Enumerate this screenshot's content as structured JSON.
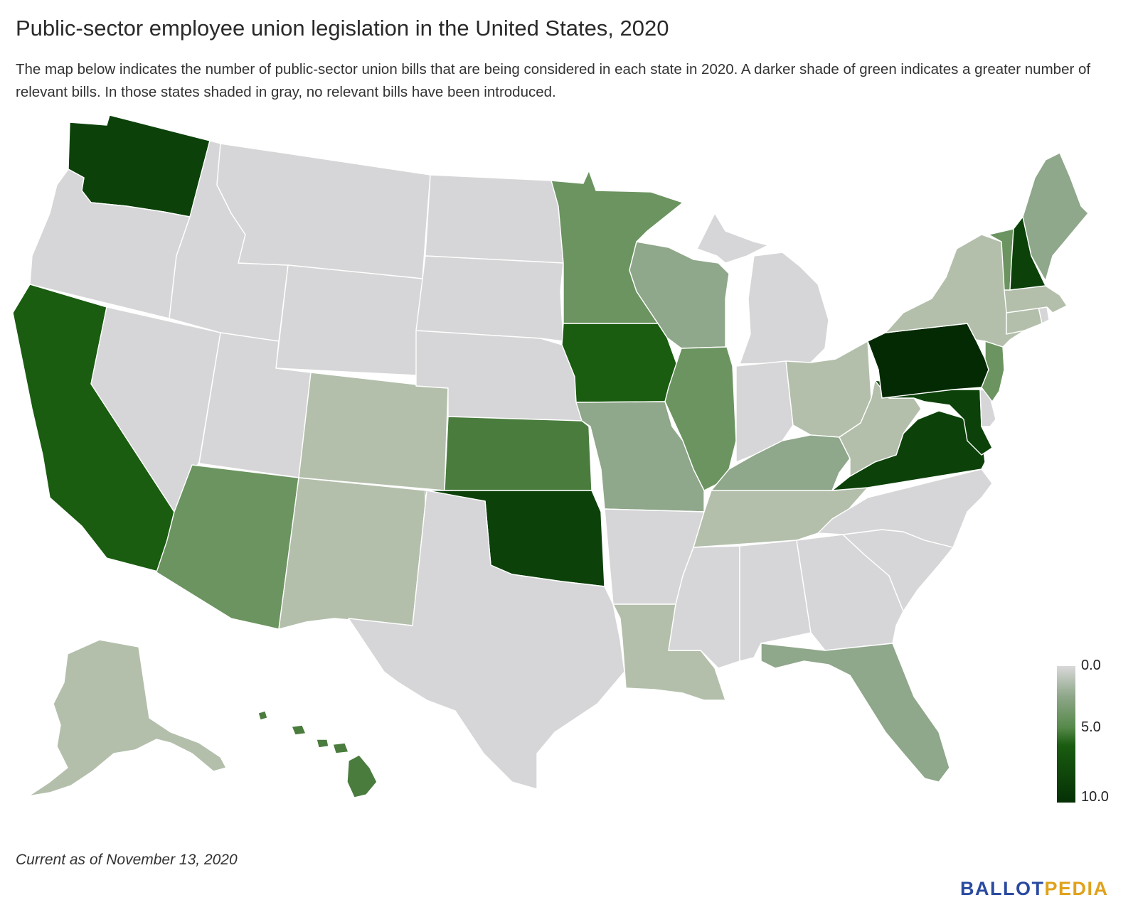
{
  "header": {
    "title": "Public-sector employee union legislation in the United States, 2020",
    "subtitle": "The map below indicates the number of public-sector union bills that are being considered in each state in 2020. A darker shade of green indicates a greater number of relevant bills. In those states shaded in gray, no relevant bills have been introduced."
  },
  "legend": {
    "min_label": "0.0",
    "mid_label": "5.0",
    "max_label": "10.0"
  },
  "footer": {
    "note": "Current as of November 13, 2020",
    "brand_part1": "BALLOT",
    "brand_part2": "PEDIA"
  },
  "colors": {
    "none": "#d6d6d8",
    "lightest": "#b3bfab",
    "light": "#8fa78a",
    "mid": "#6b9460",
    "midDark": "#4a7c3e",
    "dark": "#1a5c10",
    "darker": "#0c420a",
    "darkest": "#032a02",
    "brand_blue": "#2a4aa0",
    "brand_gold": "#e0a21c"
  },
  "states": [
    {
      "name": "Washington",
      "level": "darker"
    },
    {
      "name": "Oregon",
      "level": "none"
    },
    {
      "name": "California",
      "level": "dark"
    },
    {
      "name": "Nevada",
      "level": "none"
    },
    {
      "name": "Idaho",
      "level": "none"
    },
    {
      "name": "Montana",
      "level": "none"
    },
    {
      "name": "Wyoming",
      "level": "none"
    },
    {
      "name": "Utah",
      "level": "none"
    },
    {
      "name": "Arizona",
      "level": "mid"
    },
    {
      "name": "Colorado",
      "level": "lightest"
    },
    {
      "name": "New Mexico",
      "level": "lightest"
    },
    {
      "name": "North Dakota",
      "level": "none"
    },
    {
      "name": "South Dakota",
      "level": "none"
    },
    {
      "name": "Nebraska",
      "level": "none"
    },
    {
      "name": "Kansas",
      "level": "midDark"
    },
    {
      "name": "Oklahoma",
      "level": "darker"
    },
    {
      "name": "Texas",
      "level": "none"
    },
    {
      "name": "Minnesota",
      "level": "mid"
    },
    {
      "name": "Iowa",
      "level": "dark"
    },
    {
      "name": "Missouri",
      "level": "light"
    },
    {
      "name": "Arkansas",
      "level": "none"
    },
    {
      "name": "Louisiana",
      "level": "lightest"
    },
    {
      "name": "Wisconsin",
      "level": "light"
    },
    {
      "name": "Illinois",
      "level": "mid"
    },
    {
      "name": "Michigan",
      "level": "none"
    },
    {
      "name": "Indiana",
      "level": "none"
    },
    {
      "name": "Ohio",
      "level": "lightest"
    },
    {
      "name": "Kentucky",
      "level": "light"
    },
    {
      "name": "Tennessee",
      "level": "lightest"
    },
    {
      "name": "Mississippi",
      "level": "none"
    },
    {
      "name": "Alabama",
      "level": "none"
    },
    {
      "name": "Georgia",
      "level": "none"
    },
    {
      "name": "Florida",
      "level": "light"
    },
    {
      "name": "South Carolina",
      "level": "none"
    },
    {
      "name": "North Carolina",
      "level": "none"
    },
    {
      "name": "Virginia",
      "level": "darker"
    },
    {
      "name": "West Virginia",
      "level": "lightest"
    },
    {
      "name": "Maryland",
      "level": "darker"
    },
    {
      "name": "Delaware",
      "level": "none"
    },
    {
      "name": "Pennsylvania",
      "level": "darkest"
    },
    {
      "name": "New Jersey",
      "level": "mid"
    },
    {
      "name": "New York",
      "level": "lightest"
    },
    {
      "name": "Connecticut",
      "level": "lightest"
    },
    {
      "name": "Rhode Island",
      "level": "none"
    },
    {
      "name": "Massachusetts",
      "level": "lightest"
    },
    {
      "name": "Vermont",
      "level": "mid"
    },
    {
      "name": "New Hampshire",
      "level": "darker"
    },
    {
      "name": "Maine",
      "level": "light"
    },
    {
      "name": "Alaska",
      "level": "lightest"
    },
    {
      "name": "Hawaii",
      "level": "midDark"
    }
  ]
}
